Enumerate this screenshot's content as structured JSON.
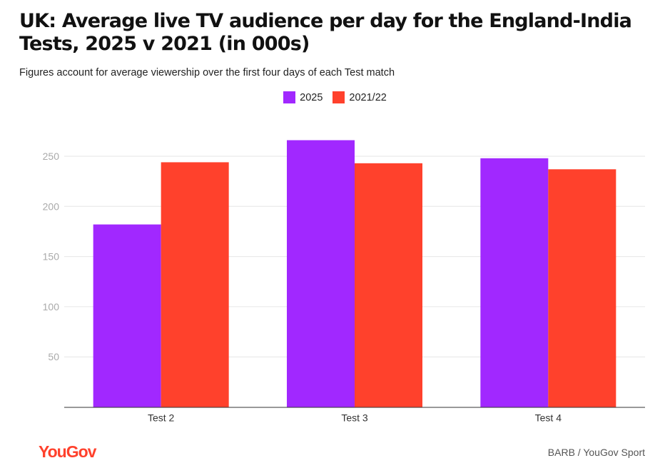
{
  "title": "UK: Average live TV audience per day for the England-India Tests, 2025 v 2021 (in 000s)",
  "subtitle": "Figures account for average viewership over the first four days of each Test match",
  "source": "BARB / YouGov Sport",
  "logo": "YouGov",
  "chart_data": {
    "type": "bar",
    "categories": [
      "Test 2",
      "Test 3",
      "Test 4"
    ],
    "series": [
      {
        "name": "2025",
        "color": "#a128ff",
        "values": [
          182,
          266,
          248
        ]
      },
      {
        "name": "2021/22",
        "color": "#ff412c",
        "values": [
          244,
          243,
          237
        ]
      }
    ],
    "yticks": [
      50,
      100,
      150,
      200,
      250
    ],
    "ylim": [
      0,
      280
    ],
    "grid": true,
    "legend": "top-center"
  }
}
